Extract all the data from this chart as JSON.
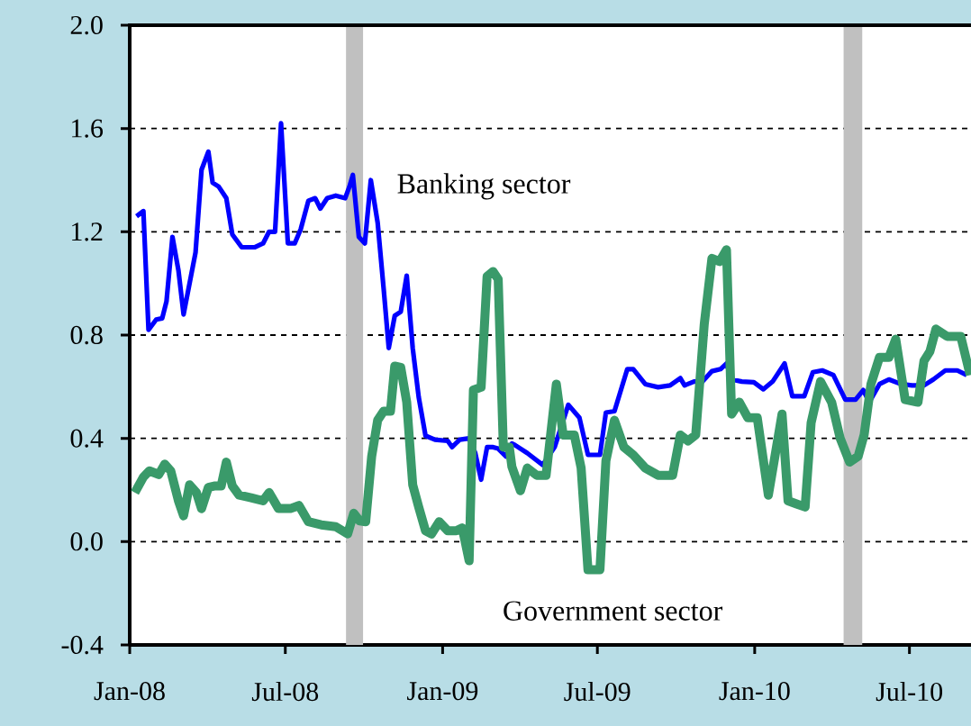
{
  "chart_data": {
    "type": "line",
    "series": [
      {
        "name": "Banking sector",
        "color": "#0000ff",
        "x": [
          "2008-01-09",
          "2008-01-17",
          "2008-01-23",
          "2008-02-01",
          "2008-02-08",
          "2008-02-13",
          "2008-02-20",
          "2008-02-27",
          "2008-03-04",
          "2008-03-18",
          "2008-03-25",
          "2008-04-02",
          "2008-04-07",
          "2008-04-14",
          "2008-04-23",
          "2008-04-30",
          "2008-05-11",
          "2008-05-26",
          "2008-06-05",
          "2008-06-12",
          "2008-06-19",
          "2008-06-26",
          "2008-07-04",
          "2008-07-12",
          "2008-07-19",
          "2008-07-28",
          "2008-08-05",
          "2008-08-11",
          "2008-08-19",
          "2008-08-29",
          "2008-09-09",
          "2008-09-14",
          "2008-09-18",
          "2008-09-25",
          "2008-10-02",
          "2008-10-09",
          "2008-10-17",
          "2008-10-24",
          "2008-10-30",
          "2008-11-06",
          "2008-11-13",
          "2008-11-20",
          "2008-11-27",
          "2008-12-04",
          "2008-12-12",
          "2008-12-23",
          "2009-01-07",
          "2009-01-12",
          "2009-01-21",
          "2009-02-01",
          "2009-02-08",
          "2009-02-15",
          "2009-02-22",
          "2009-03-01",
          "2009-03-07",
          "2009-03-16",
          "2009-03-23",
          "2009-03-27",
          "2009-04-10",
          "2009-04-28",
          "2009-05-12",
          "2009-05-28",
          "2009-06-10",
          "2009-06-20",
          "2009-07-04",
          "2009-07-11",
          "2009-07-21",
          "2009-08-05",
          "2009-08-12",
          "2009-08-26",
          "2009-09-10",
          "2009-09-24",
          "2009-10-06",
          "2009-10-11",
          "2009-10-22",
          "2009-11-01",
          "2009-11-12",
          "2009-11-22",
          "2009-11-29",
          "2009-12-05",
          "2009-12-17",
          "2009-12-31",
          "2010-01-11",
          "2010-01-22",
          "2010-02-05",
          "2010-02-14",
          "2010-02-28",
          "2010-03-10",
          "2010-03-21",
          "2010-04-03",
          "2010-04-17",
          "2010-04-29",
          "2010-05-08",
          "2010-05-15",
          "2010-05-27",
          "2010-06-07",
          "2010-06-21",
          "2010-07-04",
          "2010-07-18",
          "2010-07-29",
          "2010-08-12",
          "2010-08-26",
          "2010-09-06"
        ],
        "values": [
          1.26,
          1.28,
          0.82,
          0.86,
          0.865,
          0.93,
          1.18,
          1.05,
          0.88,
          1.12,
          1.44,
          1.51,
          1.39,
          1.375,
          1.33,
          1.19,
          1.14,
          1.14,
          1.155,
          1.2,
          1.2,
          1.62,
          1.155,
          1.155,
          1.21,
          1.32,
          1.33,
          1.29,
          1.33,
          1.34,
          1.33,
          1.375,
          1.42,
          1.18,
          1.155,
          1.4,
          1.235,
          0.98,
          0.75,
          0.875,
          0.89,
          1.03,
          0.75,
          0.56,
          0.41,
          0.395,
          0.39,
          0.366,
          0.395,
          0.4,
          0.345,
          0.24,
          0.366,
          0.366,
          0.36,
          0.33,
          0.38,
          0.373,
          0.343,
          0.297,
          0.366,
          0.53,
          0.48,
          0.336,
          0.336,
          0.5,
          0.505,
          0.668,
          0.668,
          0.61,
          0.598,
          0.605,
          0.633,
          0.605,
          0.62,
          0.62,
          0.66,
          0.668,
          0.69,
          0.628,
          0.62,
          0.617,
          0.59,
          0.62,
          0.69,
          0.563,
          0.563,
          0.656,
          0.663,
          0.645,
          0.55,
          0.55,
          0.587,
          0.54,
          0.61,
          0.628,
          0.61,
          0.605,
          0.605,
          0.628,
          0.663,
          0.663,
          0.645
        ]
      },
      {
        "name": "Government sector",
        "color": "#3a9a6a",
        "x": [
          "2008-01-07",
          "2008-01-17",
          "2008-01-24",
          "2008-02-04",
          "2008-02-11",
          "2008-02-18",
          "2008-02-27",
          "2008-03-04",
          "2008-03-11",
          "2008-03-19",
          "2008-03-25",
          "2008-04-02",
          "2008-04-10",
          "2008-04-17",
          "2008-04-23",
          "2008-04-30",
          "2008-05-08",
          "2008-05-22",
          "2008-06-05",
          "2008-06-12",
          "2008-06-23",
          "2008-07-07",
          "2008-07-17",
          "2008-07-28",
          "2008-08-12",
          "2008-08-29",
          "2008-09-12",
          "2008-09-19",
          "2008-09-26",
          "2008-10-03",
          "2008-10-10",
          "2008-10-17",
          "2008-10-24",
          "2008-11-01",
          "2008-11-06",
          "2008-11-13",
          "2008-11-20",
          "2008-11-27",
          "2008-12-04",
          "2008-12-12",
          "2008-12-19",
          "2008-12-28",
          "2009-01-07",
          "2009-01-17",
          "2009-01-24",
          "2009-02-01",
          "2009-02-06",
          "2009-02-15",
          "2009-02-22",
          "2009-03-01",
          "2009-03-07",
          "2009-03-13",
          "2009-03-20",
          "2009-03-23",
          "2009-04-02",
          "2009-04-10",
          "2009-04-21",
          "2009-05-02",
          "2009-05-14",
          "2009-05-22",
          "2009-06-04",
          "2009-06-12",
          "2009-06-20",
          "2009-07-04",
          "2009-07-11",
          "2009-07-21",
          "2009-08-01",
          "2009-08-12",
          "2009-08-26",
          "2009-09-10",
          "2009-09-27",
          "2009-10-06",
          "2009-10-15",
          "2009-10-24",
          "2009-11-03",
          "2009-11-12",
          "2009-11-21",
          "2009-11-29",
          "2009-12-05",
          "2009-12-14",
          "2009-12-24",
          "2010-01-04",
          "2010-01-17",
          "2010-02-02",
          "2010-02-09",
          "2010-02-19",
          "2010-03-01",
          "2010-03-08",
          "2010-03-19",
          "2010-04-01",
          "2010-04-11",
          "2010-04-22",
          "2010-05-02",
          "2010-05-09",
          "2010-05-17",
          "2010-05-27",
          "2010-06-07",
          "2010-06-15",
          "2010-06-26",
          "2010-07-11",
          "2010-07-18",
          "2010-07-25",
          "2010-08-01",
          "2010-08-14",
          "2010-08-30",
          "2010-09-10"
        ],
        "values": [
          0.19,
          0.25,
          0.274,
          0.26,
          0.3,
          0.274,
          0.158,
          0.1,
          0.22,
          0.19,
          0.128,
          0.21,
          0.216,
          0.216,
          0.308,
          0.216,
          0.18,
          0.17,
          0.158,
          0.19,
          0.128,
          0.128,
          0.14,
          0.077,
          0.065,
          0.058,
          0.03,
          0.11,
          0.08,
          0.077,
          0.33,
          0.47,
          0.505,
          0.505,
          0.68,
          0.675,
          0.54,
          0.22,
          0.134,
          0.042,
          0.03,
          0.077,
          0.042,
          0.042,
          0.053,
          -0.074,
          0.587,
          0.598,
          1.027,
          1.046,
          1.016,
          0.366,
          0.366,
          0.29,
          0.197,
          0.285,
          0.257,
          0.257,
          0.61,
          0.413,
          0.413,
          0.285,
          -0.109,
          -0.109,
          0.313,
          0.47,
          0.366,
          0.336,
          0.285,
          0.257,
          0.257,
          0.413,
          0.39,
          0.413,
          0.842,
          1.097,
          1.085,
          1.13,
          0.494,
          0.54,
          0.48,
          0.48,
          0.18,
          0.494,
          0.158,
          0.146,
          0.134,
          0.46,
          0.62,
          0.54,
          0.4,
          0.308,
          0.33,
          0.413,
          0.61,
          0.714,
          0.714,
          0.784,
          0.55,
          0.54,
          0.7,
          0.737,
          0.823,
          0.795,
          0.795,
          0.645
        ]
      }
    ],
    "xlim": [
      "2008-01-01",
      "2010-09-11"
    ],
    "xticks": [
      {
        "value": "2008-01-01",
        "label": "Jan-08"
      },
      {
        "value": "2008-07-01",
        "label": "Jul-08"
      },
      {
        "value": "2009-01-01",
        "label": "Jan-09"
      },
      {
        "value": "2009-07-01",
        "label": "Jul-09"
      },
      {
        "value": "2010-01-01",
        "label": "Jan-10"
      },
      {
        "value": "2010-07-01",
        "label": "Jul-10"
      }
    ],
    "ylim": [
      -0.4,
      2.0
    ],
    "yticks": [
      {
        "value": -0.4,
        "label": "-0.4"
      },
      {
        "value": 0,
        "label": "0.0"
      },
      0.4,
      0.8,
      1.2,
      1.6,
      {
        "value": 2.0,
        "label": "2.0"
      }
    ],
    "bands": [
      {
        "axis": "x",
        "from": "2008-09-10",
        "to": "2008-09-30",
        "color": "#c0c0c0"
      },
      {
        "axis": "x",
        "from": "2010-04-15",
        "to": "2010-05-07",
        "color": "#c0c0c0"
      }
    ],
    "grid": "y",
    "marker": "none",
    "line_style": "solid"
  }
}
